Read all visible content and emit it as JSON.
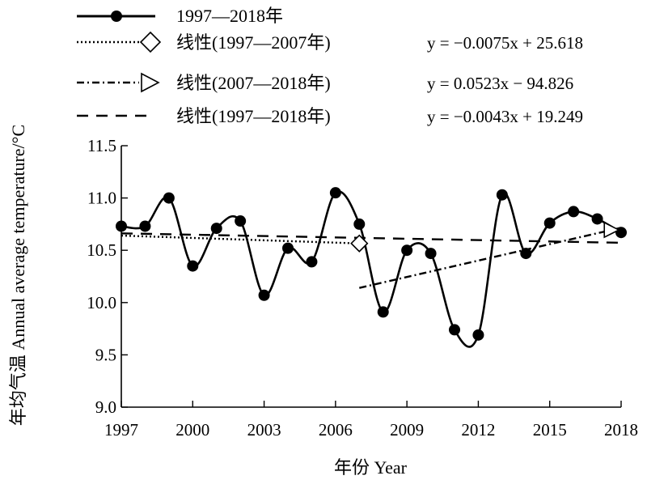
{
  "chart_data": {
    "type": "line",
    "xlabel": "年份 Year",
    "ylabel": "年均气温 Annual average temperature/°C",
    "xlim": [
      1997,
      2018
    ],
    "ylim": [
      9.0,
      11.5
    ],
    "x_ticks": [
      "1997",
      "2000",
      "2003",
      "2006",
      "2009",
      "2012",
      "2015",
      "2018"
    ],
    "y_ticks": [
      "9.0",
      "9.5",
      "10.0",
      "10.5",
      "11.0",
      "11.5"
    ],
    "grid": false,
    "legend_position": "top",
    "series": [
      {
        "name": "1997—2018年",
        "style": "solid-smooth-markers",
        "x": [
          1997,
          1998,
          1999,
          2000,
          2001,
          2002,
          2003,
          2004,
          2005,
          2006,
          2007,
          2008,
          2009,
          2010,
          2011,
          2012,
          2013,
          2014,
          2015,
          2016,
          2017,
          2018
        ],
        "y": [
          10.73,
          10.73,
          11.0,
          10.35,
          10.71,
          10.78,
          10.07,
          10.52,
          10.39,
          11.05,
          10.75,
          9.91,
          10.5,
          10.47,
          9.74,
          9.69,
          11.03,
          10.47,
          10.76,
          10.87,
          10.8,
          10.67
        ]
      },
      {
        "name": "线性(1997—2007年)",
        "style": "dotted",
        "marker": "diamond",
        "equation": "y = −0.0075x + 25.618",
        "slope": -0.0075,
        "intercept": 25.618,
        "x_range": [
          1997,
          2007
        ]
      },
      {
        "name": "线性(2007—2018年)",
        "style": "dash-dot",
        "marker": "triangle-right",
        "equation": "y = 0.0523x − 94.826",
        "slope": 0.0523,
        "intercept": -94.826,
        "x_range": [
          2007,
          2018
        ]
      },
      {
        "name": "线性(1997—2018年)",
        "style": "dashed",
        "marker": "none",
        "equation": "y = −0.0043x + 19.249",
        "slope": -0.0043,
        "intercept": 19.249,
        "x_range": [
          1997,
          2018
        ]
      }
    ]
  }
}
